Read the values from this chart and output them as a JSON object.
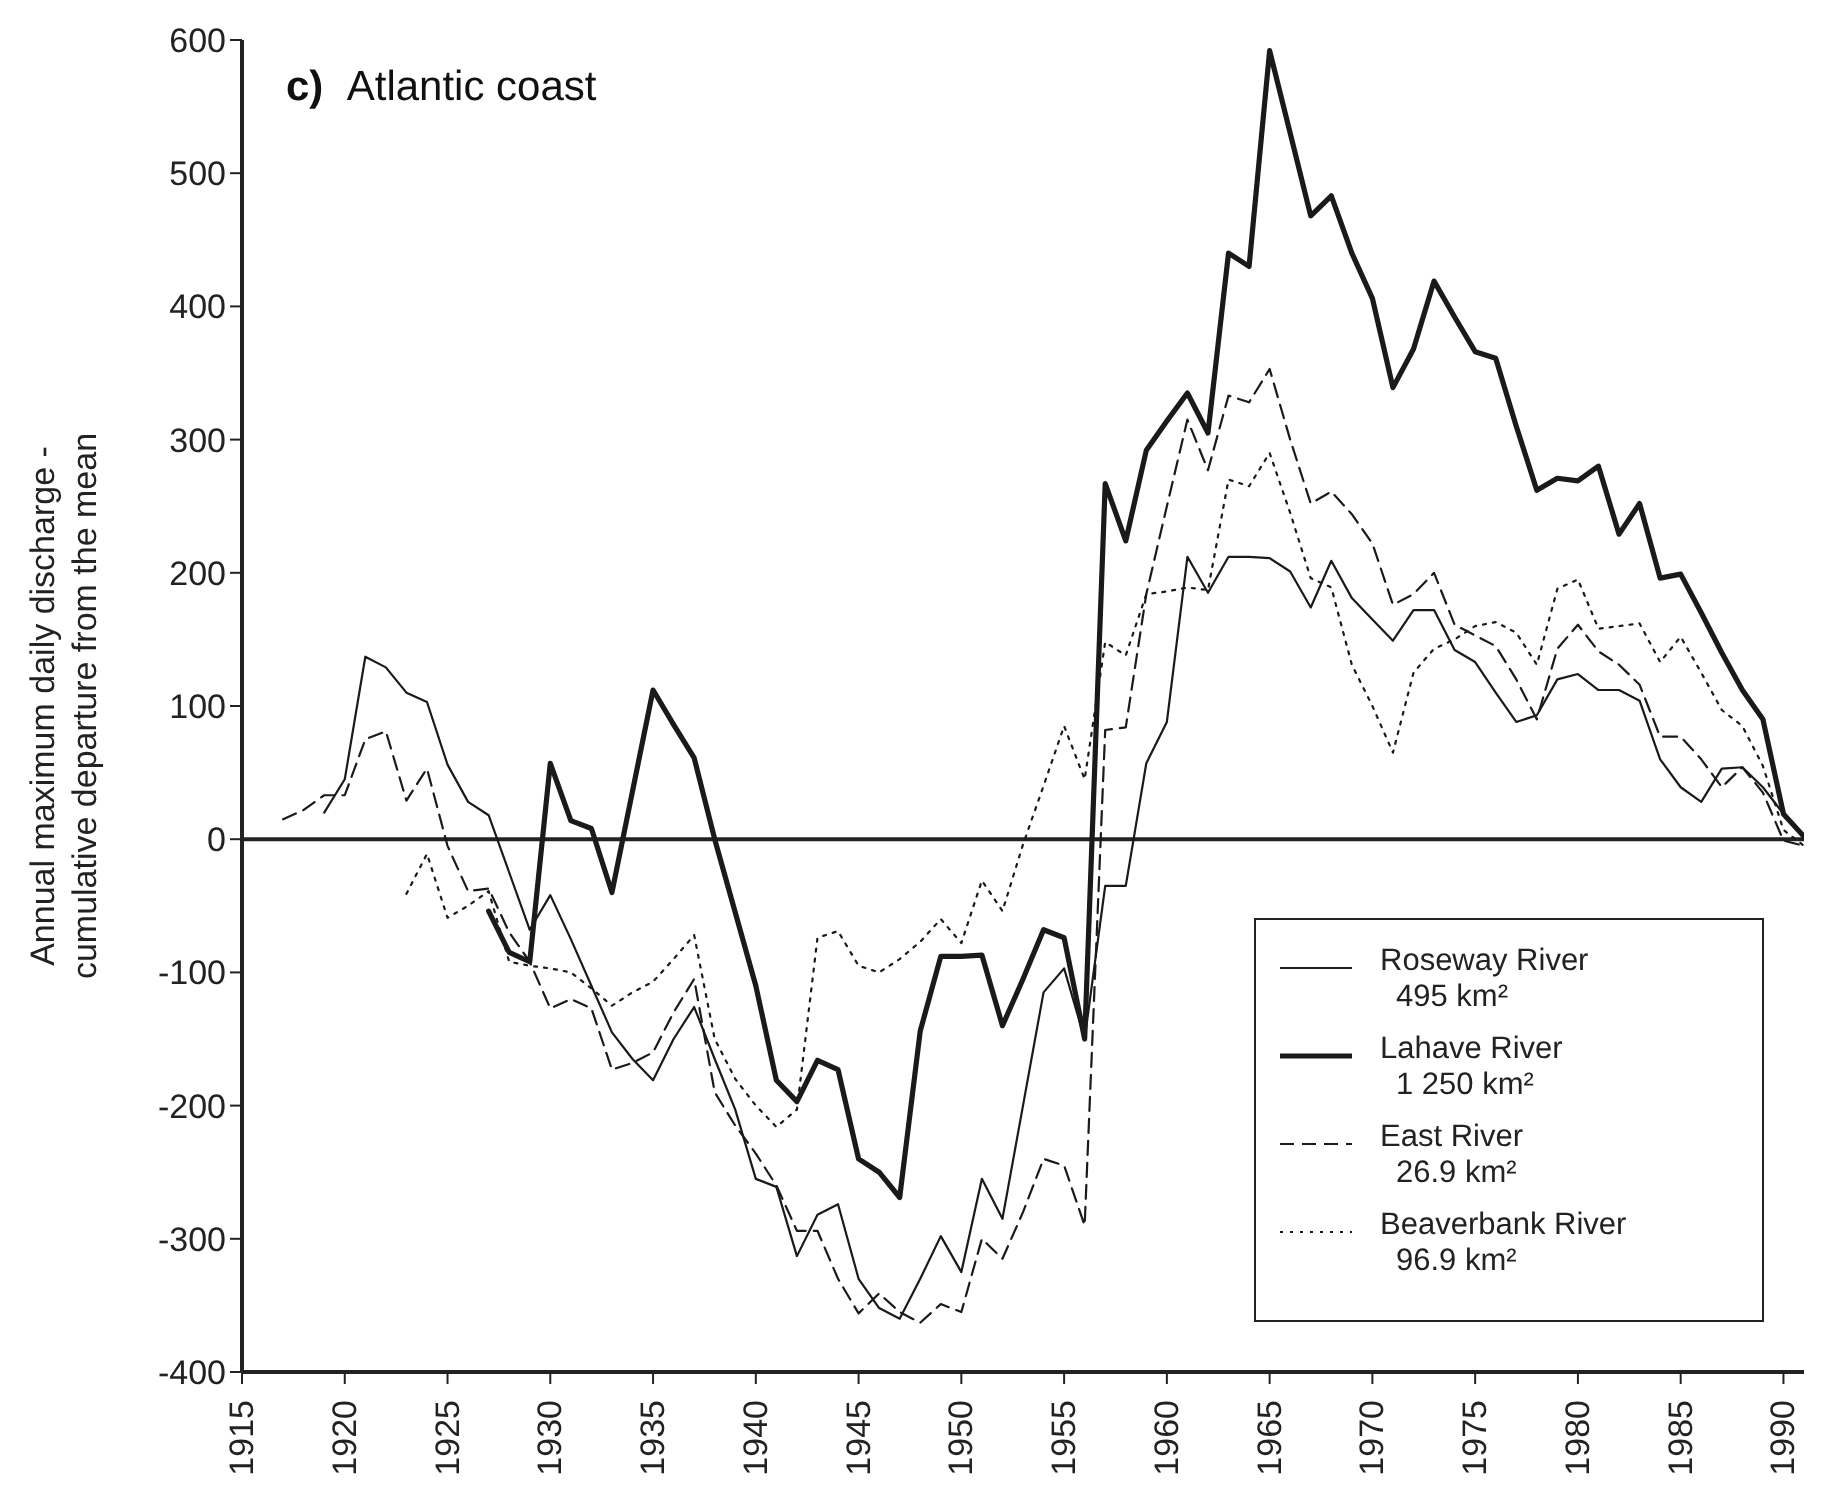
{
  "chart_data": {
    "type": "line",
    "title": "c) Atlantic coast",
    "ylabel": "Annual maximum daily discharge -\ncumulative departure from the mean",
    "x": [
      1917,
      1918,
      1919,
      1920,
      1921,
      1922,
      1923,
      1924,
      1925,
      1926,
      1927,
      1928,
      1929,
      1930,
      1931,
      1932,
      1933,
      1934,
      1935,
      1936,
      1937,
      1938,
      1939,
      1940,
      1941,
      1942,
      1943,
      1944,
      1945,
      1946,
      1947,
      1948,
      1949,
      1950,
      1951,
      1952,
      1953,
      1954,
      1955,
      1956,
      1957,
      1958,
      1959,
      1960,
      1961,
      1962,
      1963,
      1964,
      1965,
      1966,
      1967,
      1968,
      1969,
      1970,
      1971,
      1972,
      1973,
      1974,
      1975,
      1976,
      1977,
      1978,
      1979,
      1980,
      1981,
      1982,
      1983,
      1984,
      1985,
      1986,
      1987,
      1988,
      1989,
      1990,
      1991
    ],
    "series": [
      {
        "name": "Roseway River\n495 km²",
        "color": "#1a1a1a",
        "line_style": "solid",
        "values": [
          null,
          null,
          20,
          45,
          137,
          129,
          110,
          103,
          56,
          28,
          18,
          -25,
          -68,
          -42,
          -75,
          -110,
          -145,
          -165,
          -181,
          -150,
          -126,
          -165,
          -203,
          -255,
          -261,
          -313,
          -282,
          -274,
          -330,
          -352,
          -360,
          -330,
          -298,
          -325,
          -255,
          -285,
          -200,
          -115,
          -97,
          -150,
          -35,
          -35,
          57,
          88,
          212,
          185,
          212,
          212,
          211,
          201,
          174,
          209,
          181,
          165,
          149,
          172,
          172,
          142,
          133,
          110,
          88,
          93,
          120,
          124,
          112,
          112,
          104,
          60,
          39,
          28,
          53,
          54,
          39,
          19,
          2
        ]
      },
      {
        "name": "Lahave River\n1 250 km²",
        "color": "#1a1a1a",
        "line_style": "solid",
        "values": [
          null,
          null,
          null,
          null,
          null,
          null,
          null,
          null,
          null,
          null,
          -54,
          -85,
          -92,
          57,
          14,
          8,
          -40,
          36,
          112,
          86,
          61,
          0,
          -55,
          -110,
          -181,
          -197,
          -166,
          -173,
          -240,
          -250,
          -269,
          -144,
          -88,
          -88,
          -87,
          -140,
          -105,
          -68,
          -74,
          -150,
          267,
          224,
          292,
          314,
          335,
          305,
          440,
          430,
          592,
          530,
          468,
          483,
          440,
          406,
          339,
          368,
          419,
          392,
          366,
          361,
          310,
          262,
          271,
          269,
          280,
          229,
          252,
          196,
          199,
          170,
          140,
          112,
          90,
          19,
          2
        ]
      },
      {
        "name": "East River\n26.9 km²",
        "color": "#1a1a1a",
        "line_style": "dashed",
        "values": [
          15,
          22,
          33,
          33,
          75,
          81,
          29,
          53,
          -5,
          -39,
          -37,
          -70,
          -92,
          -127,
          -120,
          -127,
          -173,
          -168,
          -160,
          -130,
          -105,
          -190,
          -215,
          -236,
          -260,
          -294,
          -294,
          -330,
          -356,
          -341,
          -355,
          -363,
          -349,
          -355,
          -300,
          -315,
          -280,
          -240,
          -245,
          -290,
          82,
          84,
          184,
          250,
          315,
          277,
          333,
          328,
          353,
          300,
          252,
          261,
          244,
          222,
          176,
          184,
          200,
          161,
          153,
          145,
          120,
          90,
          143,
          161,
          141,
          131,
          116,
          77,
          77,
          60,
          39,
          54,
          35,
          -1,
          -5
        ]
      },
      {
        "name": "Beaverbank River\n96.9 km²",
        "color": "#1a1a1a",
        "line_style": "dotted",
        "values": [
          null,
          null,
          null,
          null,
          null,
          null,
          -41,
          -11,
          -59,
          -50,
          -39,
          -92,
          -95,
          -97,
          -100,
          -112,
          -125,
          -115,
          -107,
          -90,
          -72,
          -150,
          -180,
          -200,
          -216,
          -203,
          -74,
          -69,
          -95,
          -100,
          -90,
          -77,
          -60,
          -78,
          -31,
          -54,
          -4,
          40,
          85,
          45,
          148,
          138,
          184,
          186,
          189,
          187,
          270,
          265,
          290,
          245,
          196,
          189,
          131,
          100,
          65,
          125,
          143,
          150,
          160,
          163,
          155,
          131,
          188,
          195,
          158,
          160,
          162,
          133,
          152,
          125,
          97,
          85,
          55,
          7,
          -5
        ]
      }
    ],
    "xlim": [
      1915,
      1991
    ],
    "xticks": [
      1915,
      1920,
      1925,
      1930,
      1935,
      1940,
      1945,
      1950,
      1955,
      1960,
      1965,
      1970,
      1975,
      1980,
      1985,
      1990
    ],
    "ylim": [
      -400,
      600
    ],
    "yticks": [
      -400,
      -300,
      -200,
      -100,
      0,
      100,
      200,
      300,
      400,
      500,
      600
    ],
    "ref_lines": [
      {
        "axis": "y",
        "value": 0
      }
    ],
    "legend": "bottom right",
    "marker": "none"
  }
}
